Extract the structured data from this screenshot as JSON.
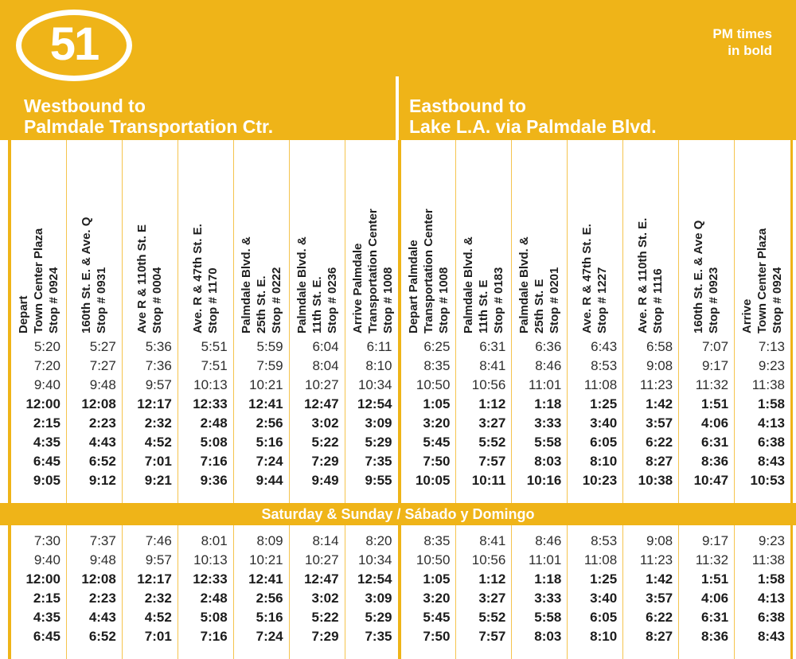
{
  "route": {
    "number": "51",
    "pm_note": "PM times\nin bold"
  },
  "directions": [
    {
      "title": "Westbound to\nPalmdale Transportation Ctr."
    },
    {
      "title": "Eastbound to\nLake L.A. via Palmdale Blvd."
    }
  ],
  "columns": [
    {
      "label": "Depart\nTown Center Plaza\nStop # 0924"
    },
    {
      "label": "160th St. E. & Ave. Q\nStop # 0931"
    },
    {
      "label": "Ave R & 110th St. E\nStop # 0004"
    },
    {
      "label": "Ave. R & 47th St. E.\nStop # 1170"
    },
    {
      "label": "Palmdale Blvd. &\n25th St. E.\nStop # 0222"
    },
    {
      "label": "Palmdale Blvd. &\n11th St. E.\nStop # 0236"
    },
    {
      "label": "Arrive Palmdale\nTransportation Center\nStop # 1008"
    },
    {
      "label": "Depart Palmdale\nTransportation Center\nStop # 1008"
    },
    {
      "label": "Palmdale Blvd. &\n11th St. E\nStop # 0183"
    },
    {
      "label": "Palmdale Blvd. &\n25th St. E\nStop # 0201"
    },
    {
      "label": "Ave. R & 47th St. E.\nStop # 1227"
    },
    {
      "label": "Ave. R & 110th St. E.\nStop # 1116"
    },
    {
      "label": "160th St. E. & Ave Q\nStop # 0923"
    },
    {
      "label": "Arrive\nTown Center Plaza\nStop # 0924"
    }
  ],
  "sections": {
    "weekday": {
      "rows": [
        {
          "pm": false,
          "cells": [
            "5:20",
            "5:27",
            "5:36",
            "5:51",
            "5:59",
            "6:04",
            "6:11",
            "6:25",
            "6:31",
            "6:36",
            "6:43",
            "6:58",
            "7:07",
            "7:13"
          ]
        },
        {
          "pm": false,
          "cells": [
            "7:20",
            "7:27",
            "7:36",
            "7:51",
            "7:59",
            "8:04",
            "8:10",
            "8:35",
            "8:41",
            "8:46",
            "8:53",
            "9:08",
            "9:17",
            "9:23"
          ]
        },
        {
          "pm": false,
          "cells": [
            "9:40",
            "9:48",
            "9:57",
            "10:13",
            "10:21",
            "10:27",
            "10:34",
            "10:50",
            "10:56",
            "11:01",
            "11:08",
            "11:23",
            "11:32",
            "11:38"
          ]
        },
        {
          "pm": true,
          "cells": [
            "12:00",
            "12:08",
            "12:17",
            "12:33",
            "12:41",
            "12:47",
            "12:54",
            "1:05",
            "1:12",
            "1:18",
            "1:25",
            "1:42",
            "1:51",
            "1:58"
          ]
        },
        {
          "pm": true,
          "cells": [
            "2:15",
            "2:23",
            "2:32",
            "2:48",
            "2:56",
            "3:02",
            "3:09",
            "3:20",
            "3:27",
            "3:33",
            "3:40",
            "3:57",
            "4:06",
            "4:13"
          ]
        },
        {
          "pm": true,
          "cells": [
            "4:35",
            "4:43",
            "4:52",
            "5:08",
            "5:16",
            "5:22",
            "5:29",
            "5:45",
            "5:52",
            "5:58",
            "6:05",
            "6:22",
            "6:31",
            "6:38"
          ]
        },
        {
          "pm": true,
          "cells": [
            "6:45",
            "6:52",
            "7:01",
            "7:16",
            "7:24",
            "7:29",
            "7:35",
            "7:50",
            "7:57",
            "8:03",
            "8:10",
            "8:27",
            "8:36",
            "8:43"
          ]
        },
        {
          "pm": true,
          "cells": [
            "9:05",
            "9:12",
            "9:21",
            "9:36",
            "9:44",
            "9:49",
            "9:55",
            "10:05",
            "10:11",
            "10:16",
            "10:23",
            "10:38",
            "10:47",
            "10:53"
          ]
        }
      ]
    },
    "weekend_banner": "Saturday & Sunday / Sábado y Domingo",
    "weekend": {
      "rows": [
        {
          "pm": false,
          "cells": [
            "7:30",
            "7:37",
            "7:46",
            "8:01",
            "8:09",
            "8:14",
            "8:20",
            "8:35",
            "8:41",
            "8:46",
            "8:53",
            "9:08",
            "9:17",
            "9:23"
          ]
        },
        {
          "pm": false,
          "cells": [
            "9:40",
            "9:48",
            "9:57",
            "10:13",
            "10:21",
            "10:27",
            "10:34",
            "10:50",
            "10:56",
            "11:01",
            "11:08",
            "11:23",
            "11:32",
            "11:38"
          ]
        },
        {
          "pm": true,
          "cells": [
            "12:00",
            "12:08",
            "12:17",
            "12:33",
            "12:41",
            "12:47",
            "12:54",
            "1:05",
            "1:12",
            "1:18",
            "1:25",
            "1:42",
            "1:51",
            "1:58"
          ]
        },
        {
          "pm": true,
          "cells": [
            "2:15",
            "2:23",
            "2:32",
            "2:48",
            "2:56",
            "3:02",
            "3:09",
            "3:20",
            "3:27",
            "3:33",
            "3:40",
            "3:57",
            "4:06",
            "4:13"
          ]
        },
        {
          "pm": true,
          "cells": [
            "4:35",
            "4:43",
            "4:52",
            "5:08",
            "5:16",
            "5:22",
            "5:29",
            "5:45",
            "5:52",
            "5:58",
            "6:05",
            "6:22",
            "6:31",
            "6:38"
          ]
        },
        {
          "pm": true,
          "cells": [
            "6:45",
            "6:52",
            "7:01",
            "7:16",
            "7:24",
            "7:29",
            "7:35",
            "7:50",
            "7:57",
            "8:03",
            "8:10",
            "8:27",
            "8:36",
            "8:43"
          ]
        }
      ]
    }
  },
  "colors": {
    "brand_yellow": "#EFB418",
    "divider_light": "#F5C44E",
    "text_dark": "#2B2B2B"
  }
}
